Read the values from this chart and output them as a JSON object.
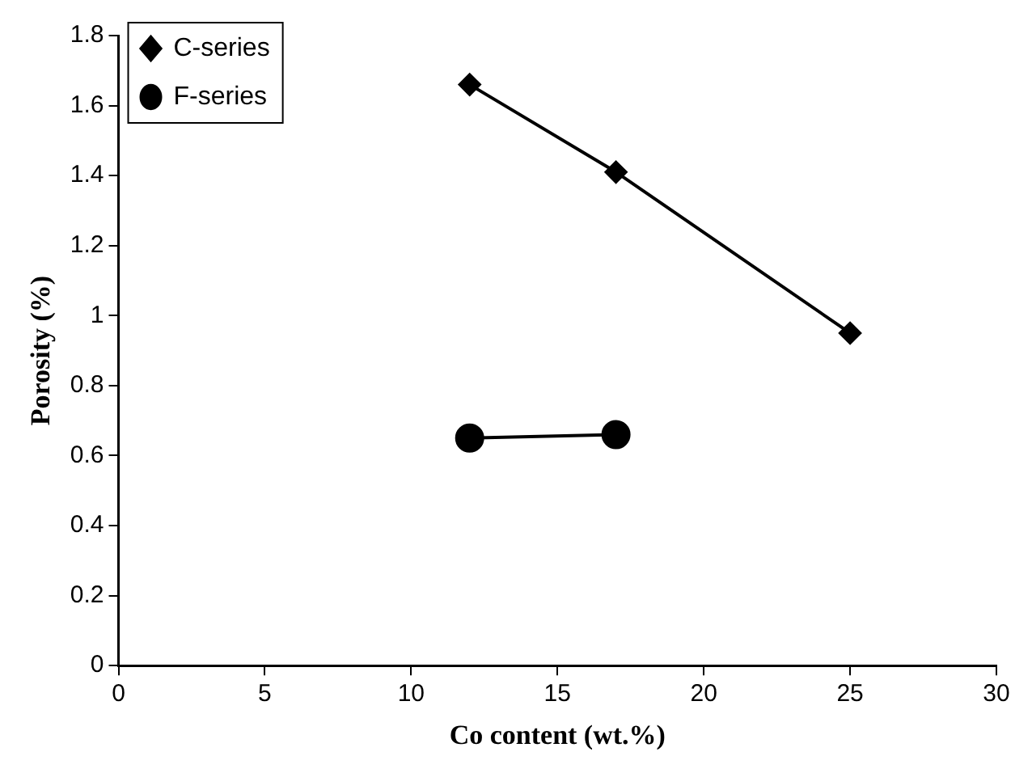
{
  "chart_data": {
    "type": "line",
    "xlabel": "Co content (wt.%)",
    "ylabel": "Porosity (%)",
    "xlim": [
      0,
      30
    ],
    "xticks": [
      0,
      5,
      10,
      15,
      20,
      25,
      30
    ],
    "ylim": [
      0,
      1.8
    ],
    "yticks": [
      0,
      0.2,
      0.4,
      0.6,
      0.8,
      1,
      1.2,
      1.4,
      1.6,
      1.8
    ],
    "grid": false,
    "legend": "top left",
    "line_style": "solid",
    "series": [
      {
        "name": "C-series",
        "color": "#000000",
        "marker": "diamond",
        "x": [
          12,
          17,
          25
        ],
        "values": [
          1.66,
          1.41,
          0.95
        ]
      },
      {
        "name": "F-series",
        "color": "#000000",
        "marker": "circle",
        "x": [
          12,
          17
        ],
        "values": [
          0.65,
          0.66
        ]
      }
    ]
  }
}
